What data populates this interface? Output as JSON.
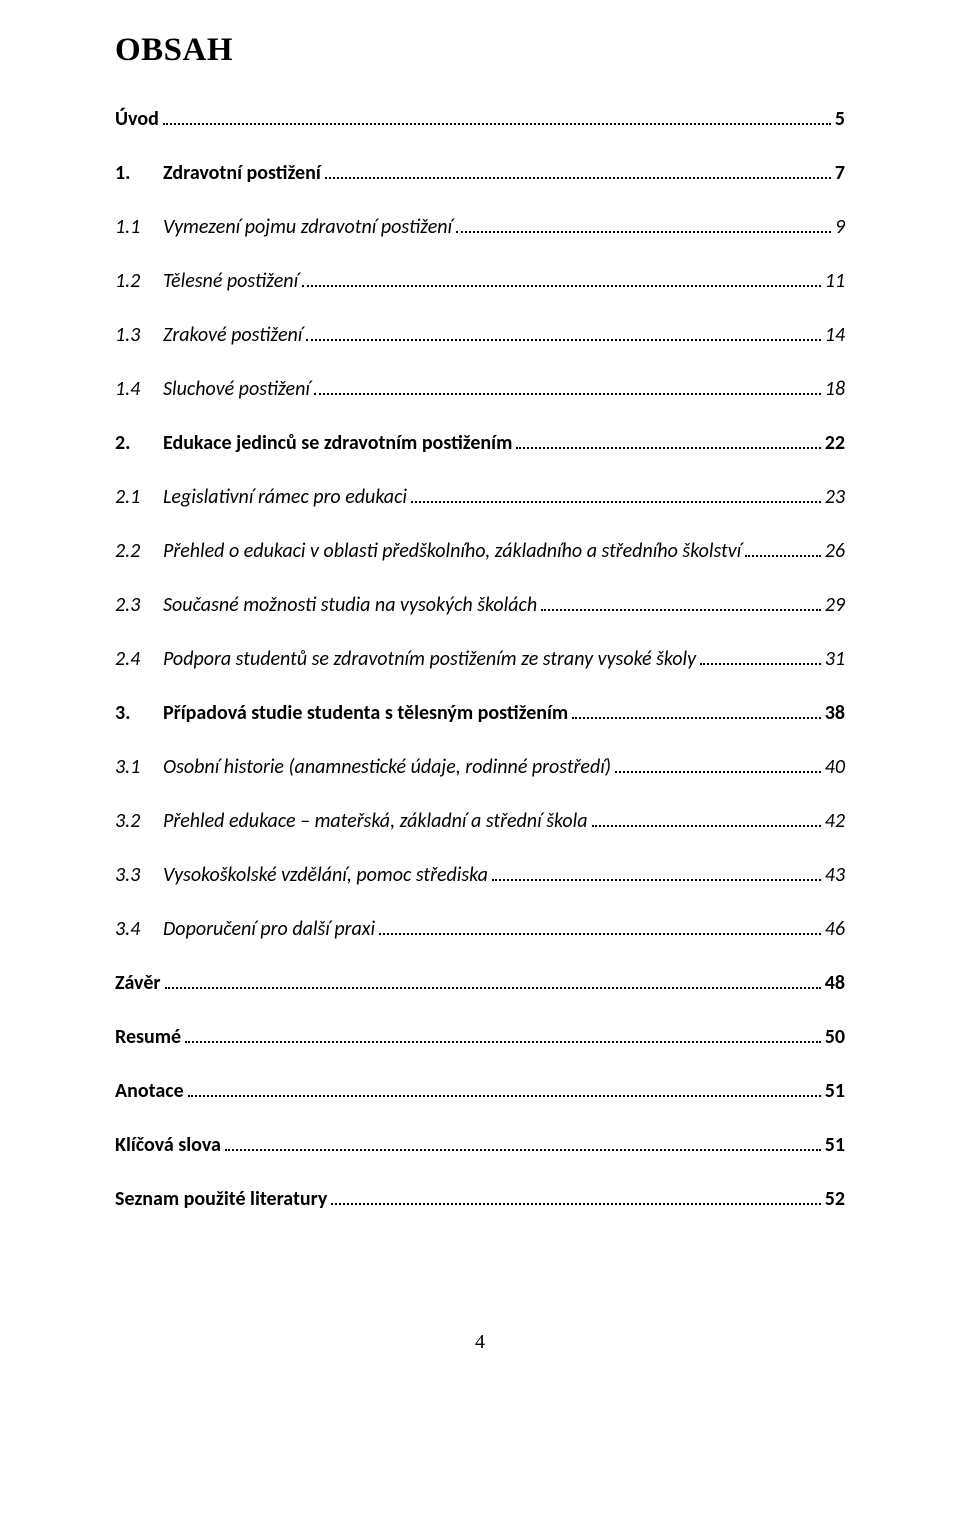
{
  "title": "OBSAH",
  "page_number": "4",
  "colors": {
    "text": "#000000",
    "background": "#ffffff",
    "dots": "#000000"
  },
  "typography": {
    "title_family": "Times New Roman",
    "title_size_pt": 24,
    "title_weight": "bold",
    "body_family": "Calibri",
    "body_size_pt": 14
  },
  "toc": [
    {
      "num": "",
      "label": "Úvod",
      "page": "5",
      "level": "bold",
      "indent": false
    },
    {
      "num": "1.",
      "label": "Zdravotní postižení",
      "page": "7",
      "level": "bold",
      "indent": false
    },
    {
      "num": "1.1",
      "label": "Vymezení pojmu zdravotní postižení",
      "page": "9",
      "level": "italic",
      "indent": true
    },
    {
      "num": "1.2",
      "label": "Tělesné postižení",
      "page": "11",
      "level": "italic",
      "indent": true
    },
    {
      "num": "1.3",
      "label": "Zrakové postižení",
      "page": "14",
      "level": "italic",
      "indent": true
    },
    {
      "num": "1.4",
      "label": "Sluchové postižení",
      "page": "18",
      "level": "italic",
      "indent": true
    },
    {
      "num": "2.",
      "label": "Edukace jedinců se zdravotním postižením",
      "page": "22",
      "level": "bold",
      "indent": false
    },
    {
      "num": "2.1",
      "label": "Legislativní rámec pro edukaci",
      "page": "23",
      "level": "italic",
      "indent": true
    },
    {
      "num": "2.2",
      "label": "Přehled o edukaci v oblasti předškolního, základního a středního školství",
      "page": "26",
      "level": "italic",
      "indent": true
    },
    {
      "num": "2.3",
      "label": "Současné možnosti studia na vysokých školách",
      "page": "29",
      "level": "italic",
      "indent": true
    },
    {
      "num": "2.4",
      "label": "Podpora studentů se zdravotním postižením ze strany vysoké školy",
      "page": "31",
      "level": "italic",
      "indent": true
    },
    {
      "num": "3.",
      "label": "Případová studie studenta s tělesným postižením",
      "page": "38",
      "level": "bold",
      "indent": false
    },
    {
      "num": "3.1",
      "label": "Osobní historie (anamnestické údaje, rodinné prostředí)",
      "page": "40",
      "level": "italic",
      "indent": true
    },
    {
      "num": "3.2",
      "label": "Přehled edukace – mateřská, základní a střední škola",
      "page": "42",
      "level": "italic",
      "indent": true
    },
    {
      "num": "3.3",
      "label": "Vysokoškolské vzdělání, pomoc střediska",
      "page": "43",
      "level": "italic",
      "indent": true
    },
    {
      "num": "3.4",
      "label": "Doporučení pro další praxi",
      "page": "46",
      "level": "italic",
      "indent": true
    },
    {
      "num": "",
      "label": "Závěr",
      "page": "48",
      "level": "bold",
      "indent": false
    },
    {
      "num": "",
      "label": "Resumé",
      "page": "50",
      "level": "bold",
      "indent": false
    },
    {
      "num": "",
      "label": "Anotace",
      "page": "51",
      "level": "bold",
      "indent": false
    },
    {
      "num": "",
      "label": "Klíčová slova",
      "page": "51",
      "level": "bold",
      "indent": false
    },
    {
      "num": "",
      "label": "Seznam použité literatury",
      "page": "52",
      "level": "bold",
      "indent": false
    }
  ]
}
